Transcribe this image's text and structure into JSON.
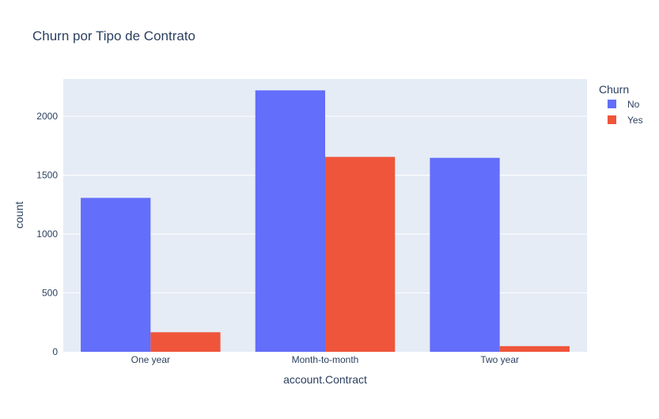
{
  "chart_data": {
    "type": "bar",
    "title": "Churn por Tipo de Contrato",
    "xlabel": "account.Contract",
    "ylabel": "count",
    "categories": [
      "One year",
      "Month-to-month",
      "Two year"
    ],
    "ylim": [
      0,
      2316
    ],
    "yticks": [
      0,
      500,
      1000,
      1500,
      2000
    ],
    "ytick_labels": [
      "0",
      "500",
      "1000",
      "1500",
      "2000"
    ],
    "grid": true,
    "legend": {
      "title": "Churn",
      "position": "top-right"
    },
    "series": [
      {
        "name": "No",
        "color": "#636efa",
        "values": [
          1307,
          2220,
          1647
        ]
      },
      {
        "name": "Yes",
        "color": "#ef553b",
        "values": [
          166,
          1655,
          48
        ]
      }
    ],
    "plot_background": "#e5ecf6",
    "text_color": "#2a3f5f"
  }
}
